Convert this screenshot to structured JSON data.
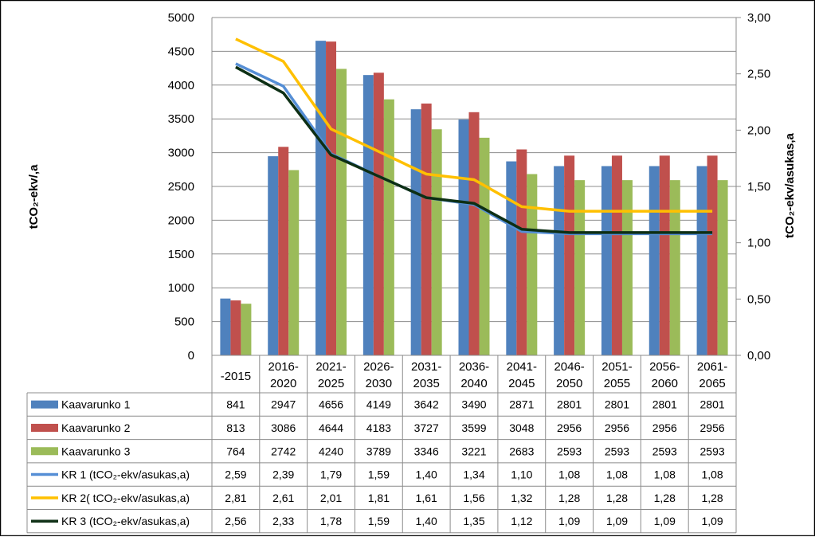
{
  "chart_data": {
    "type": "bar",
    "categories": [
      [
        "-2015"
      ],
      [
        "2016-",
        "2020"
      ],
      [
        "2021-",
        "2025"
      ],
      [
        "2026-",
        "2030"
      ],
      [
        "2031-",
        "2035"
      ],
      [
        "2036-",
        "2040"
      ],
      [
        "2041-",
        "2045"
      ],
      [
        "2046-",
        "2050"
      ],
      [
        "2051-",
        "2055"
      ],
      [
        "2056-",
        "2060"
      ],
      [
        "2061-",
        "2065"
      ]
    ],
    "ylabel": "tCO₂-ekv/,a",
    "y2label": "tCO₂-ekv/asukas,a",
    "ylim": [
      0,
      5000
    ],
    "y2lim": [
      0,
      3
    ],
    "yticks": [
      "0",
      "500",
      "1000",
      "1500",
      "2000",
      "2500",
      "3000",
      "3500",
      "4000",
      "4500",
      "5000"
    ],
    "y2ticks": [
      "0,00",
      "0,50",
      "1,00",
      "1,50",
      "2,00",
      "2,50",
      "3,00"
    ],
    "grid": true,
    "legend": "data table below chart",
    "bar_series": [
      {
        "name": "Kaavarunko 1",
        "color": "#4f81bd",
        "values": [
          841,
          2947,
          4656,
          4149,
          3642,
          3490,
          2871,
          2801,
          2801,
          2801,
          2801
        ],
        "labels": [
          "841",
          "2947",
          "4656",
          "4149",
          "3642",
          "3490",
          "2871",
          "2801",
          "2801",
          "2801",
          "2801"
        ]
      },
      {
        "name": "Kaavarunko 2",
        "color": "#c0504d",
        "values": [
          813,
          3086,
          4644,
          4183,
          3727,
          3599,
          3048,
          2956,
          2956,
          2956,
          2956
        ],
        "labels": [
          "813",
          "3086",
          "4644",
          "4183",
          "3727",
          "3599",
          "3048",
          "2956",
          "2956",
          "2956",
          "2956"
        ]
      },
      {
        "name": "Kaavarunko 3",
        "color": "#9bbb59",
        "values": [
          764,
          2742,
          4240,
          3789,
          3346,
          3221,
          2683,
          2593,
          2593,
          2593,
          2593
        ],
        "labels": [
          "764",
          "2742",
          "4240",
          "3789",
          "3346",
          "3221",
          "2683",
          "2593",
          "2593",
          "2593",
          "2593"
        ]
      }
    ],
    "line_series": [
      {
        "name": "KR 1 (tCO₂-ekv/asukas,a)",
        "color": "#558ed5",
        "axis": "right",
        "values": [
          2.59,
          2.39,
          1.79,
          1.59,
          1.4,
          1.34,
          1.1,
          1.08,
          1.08,
          1.08,
          1.08
        ],
        "labels": [
          "2,59",
          "2,39",
          "1,79",
          "1,59",
          "1,40",
          "1,34",
          "1,10",
          "1,08",
          "1,08",
          "1,08",
          "1,08"
        ]
      },
      {
        "name": "KR 2( tCO₂-ekv/asukas,a)",
        "color": "#ffc000",
        "axis": "right",
        "values": [
          2.81,
          2.61,
          2.01,
          1.81,
          1.61,
          1.56,
          1.32,
          1.28,
          1.28,
          1.28,
          1.28
        ],
        "labels": [
          "2,81",
          "2,61",
          "2,01",
          "1,81",
          "1,61",
          "1,56",
          "1,32",
          "1,28",
          "1,28",
          "1,28",
          "1,28"
        ]
      },
      {
        "name": "KR 3 (tCO₂-ekv/asukas,a)",
        "color": "#0d2f14",
        "axis": "right",
        "values": [
          2.56,
          2.33,
          1.78,
          1.59,
          1.4,
          1.35,
          1.12,
          1.09,
          1.09,
          1.09,
          1.09
        ],
        "labels": [
          "2,56",
          "2,33",
          "1,78",
          "1,59",
          "1,40",
          "1,35",
          "1,12",
          "1,09",
          "1,09",
          "1,09",
          "1,09"
        ]
      }
    ]
  }
}
